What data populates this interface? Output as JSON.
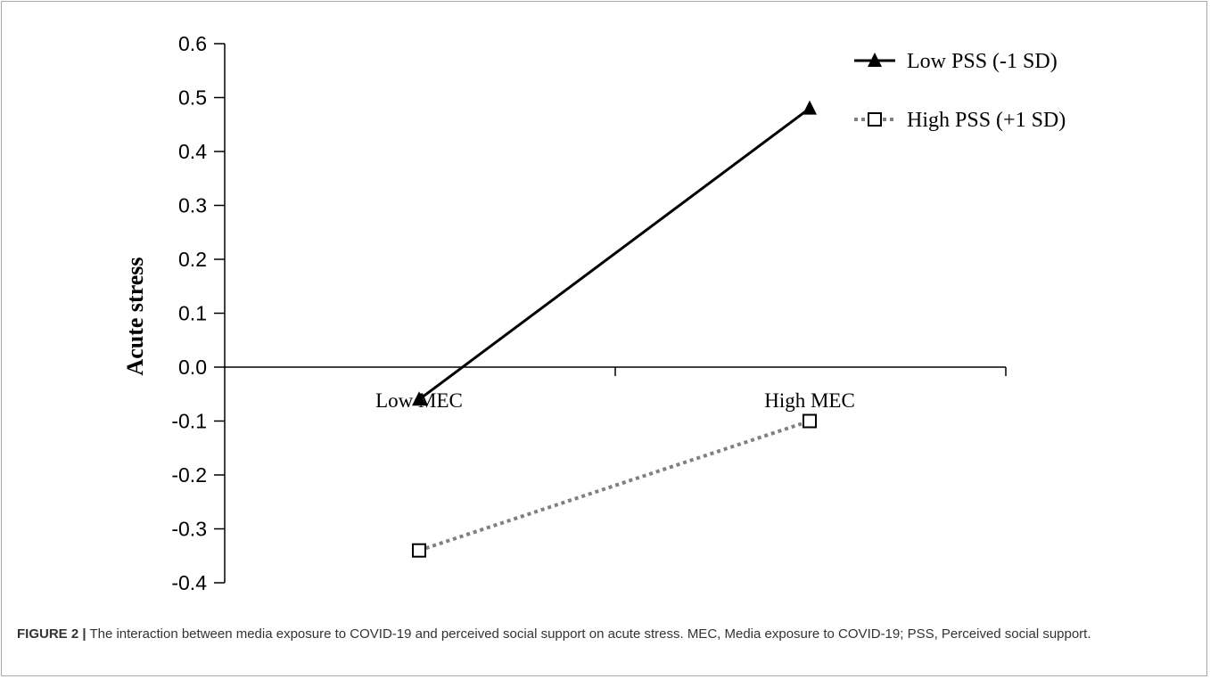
{
  "chart_data": {
    "type": "line",
    "title": "",
    "xlabel": "",
    "ylabel": "Acute stress",
    "categories": [
      "Low MEC",
      "High MEC"
    ],
    "ylim": [
      -0.4,
      0.6
    ],
    "yticks": [
      "0.6",
      "0.5",
      "0.4",
      "0.3",
      "0.2",
      "0.1",
      "0.0",
      "-0.1",
      "-0.2",
      "-0.3",
      "-0.4"
    ],
    "ytick_values": [
      0.6,
      0.5,
      0.4,
      0.3,
      0.2,
      0.1,
      0.0,
      -0.1,
      -0.2,
      -0.3,
      -0.4
    ],
    "grid": false,
    "legend_position": "top-right",
    "series": [
      {
        "name": "Low PSS (-1 SD)",
        "values": [
          -0.06,
          0.48
        ],
        "marker": "filled-triangle",
        "line_style": "solid",
        "color": "#000000"
      },
      {
        "name": "High PSS (+1 SD)",
        "values": [
          -0.34,
          -0.1
        ],
        "marker": "open-square",
        "line_style": "dotted",
        "color": "#808080"
      }
    ]
  },
  "caption": {
    "label": "FIGURE 2 |",
    "text": "The interaction between media exposure to COVID-19 and perceived social support on acute stress. MEC, Media exposure to COVID-19; PSS, Perceived social support."
  }
}
